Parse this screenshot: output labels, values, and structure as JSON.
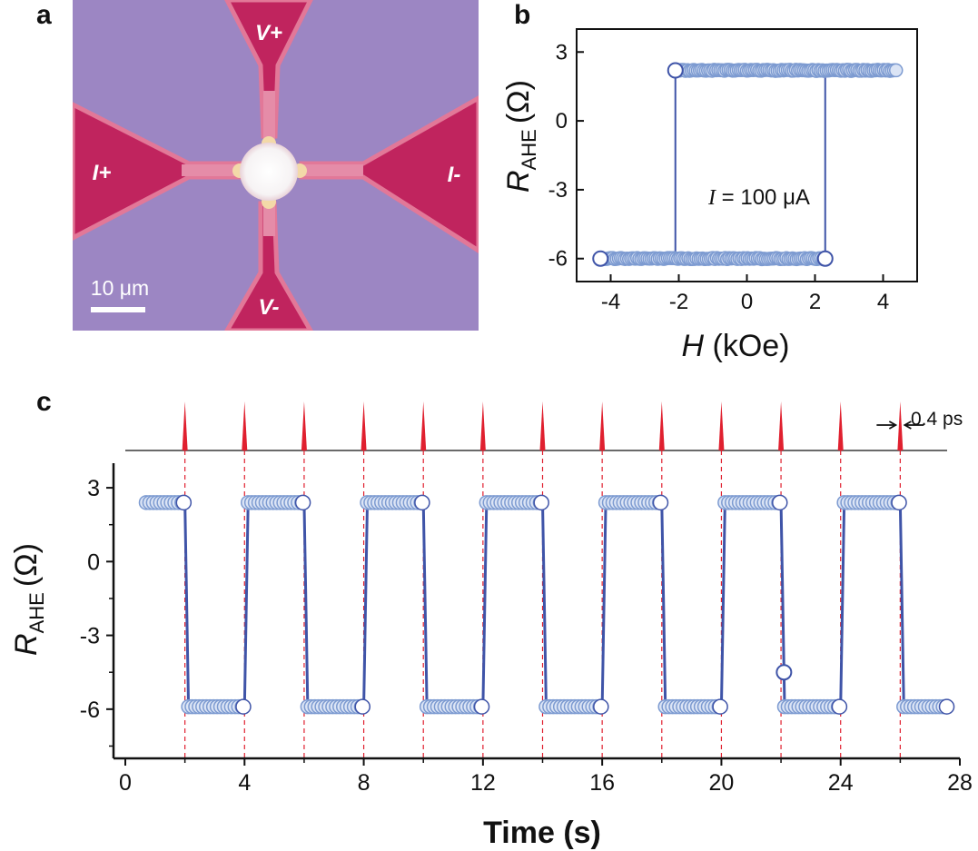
{
  "panels": {
    "a": "a",
    "b": "b",
    "c": "c"
  },
  "micrograph": {
    "labels": {
      "v_plus": "V+",
      "v_minus": "V-",
      "i_plus": "I+",
      "i_minus": "I-"
    },
    "scale_bar": "10 μm",
    "colors": {
      "substrate": "#9c86c3",
      "pad": "#c0245e",
      "pad_glow": "#e27898",
      "disk": "#f6f3f4",
      "contact": "#f3d9a8"
    }
  },
  "chart_data": [
    {
      "panel": "b",
      "type": "scatter",
      "title": "",
      "xlabel": "H (kOe)",
      "ylabel": "R_AHE (Ω)",
      "ylabel_main": "R",
      "ylabel_sub": "AHE",
      "ylabel_unit": "(Ω)",
      "xlabel_main": "H",
      "xlabel_unit": "(kOe)",
      "xlim": [
        -5,
        5
      ],
      "ylim": [
        -7,
        4
      ],
      "xticks": [
        -4,
        -2,
        0,
        2,
        4
      ],
      "yticks": [
        3,
        0,
        -3,
        -6
      ],
      "annotation": "I = 100 μA",
      "annotation_var": "I",
      "annotation_rest": " = 100 μA",
      "series": [
        {
          "x_start": -4.3,
          "x_end": 4.4,
          "y_upper": 2.2,
          "y_lower": -6.0
        },
        {
          "switch_down": -2.1,
          "switch_up": 2.3
        }
      ],
      "marker_color": "#7d9bd1",
      "line_color": "#3f54a8"
    },
    {
      "panel": "c",
      "type": "line",
      "title": "",
      "xlabel": "Time (s)",
      "ylabel": "R_AHE (Ω)",
      "ylabel_main": "R",
      "ylabel_sub": "AHE",
      "ylabel_unit": "(Ω)",
      "xlim": [
        0,
        28
      ],
      "ylim": [
        -8,
        4
      ],
      "xticks": [
        0,
        4,
        8,
        12,
        16,
        20,
        24,
        28
      ],
      "yticks": [
        3,
        0,
        -3,
        -6
      ],
      "pulse_times": [
        2,
        4,
        6,
        8,
        10,
        12,
        14,
        16,
        18,
        20,
        22,
        24,
        26
      ],
      "pulse_label": "0.4 ps",
      "levels": {
        "high": 2.4,
        "low": -5.9
      },
      "intermediate_point": {
        "x": 22.1,
        "y": -4.5
      },
      "segments": [
        {
          "from": 0.7,
          "to": 2,
          "level": 2.4
        },
        {
          "from": 2,
          "to": 4,
          "level": -5.9
        },
        {
          "from": 4,
          "to": 6,
          "level": 2.4
        },
        {
          "from": 6,
          "to": 8,
          "level": -5.9
        },
        {
          "from": 8,
          "to": 10,
          "level": 2.4
        },
        {
          "from": 10,
          "to": 12,
          "level": -5.9
        },
        {
          "from": 12,
          "to": 14,
          "level": 2.4
        },
        {
          "from": 14,
          "to": 16,
          "level": -5.9
        },
        {
          "from": 16,
          "to": 18,
          "level": 2.4
        },
        {
          "from": 18,
          "to": 20,
          "level": -5.9
        },
        {
          "from": 20,
          "to": 22,
          "level": 2.4
        },
        {
          "from": 22,
          "to": 24,
          "level": -5.9
        },
        {
          "from": 24,
          "to": 26,
          "level": 2.4
        },
        {
          "from": 26,
          "to": 27.6,
          "level": -5.9
        }
      ],
      "marker_color": "#7d9bd1",
      "line_color": "#3f54a8",
      "pulse_color": "#e0202f"
    }
  ]
}
